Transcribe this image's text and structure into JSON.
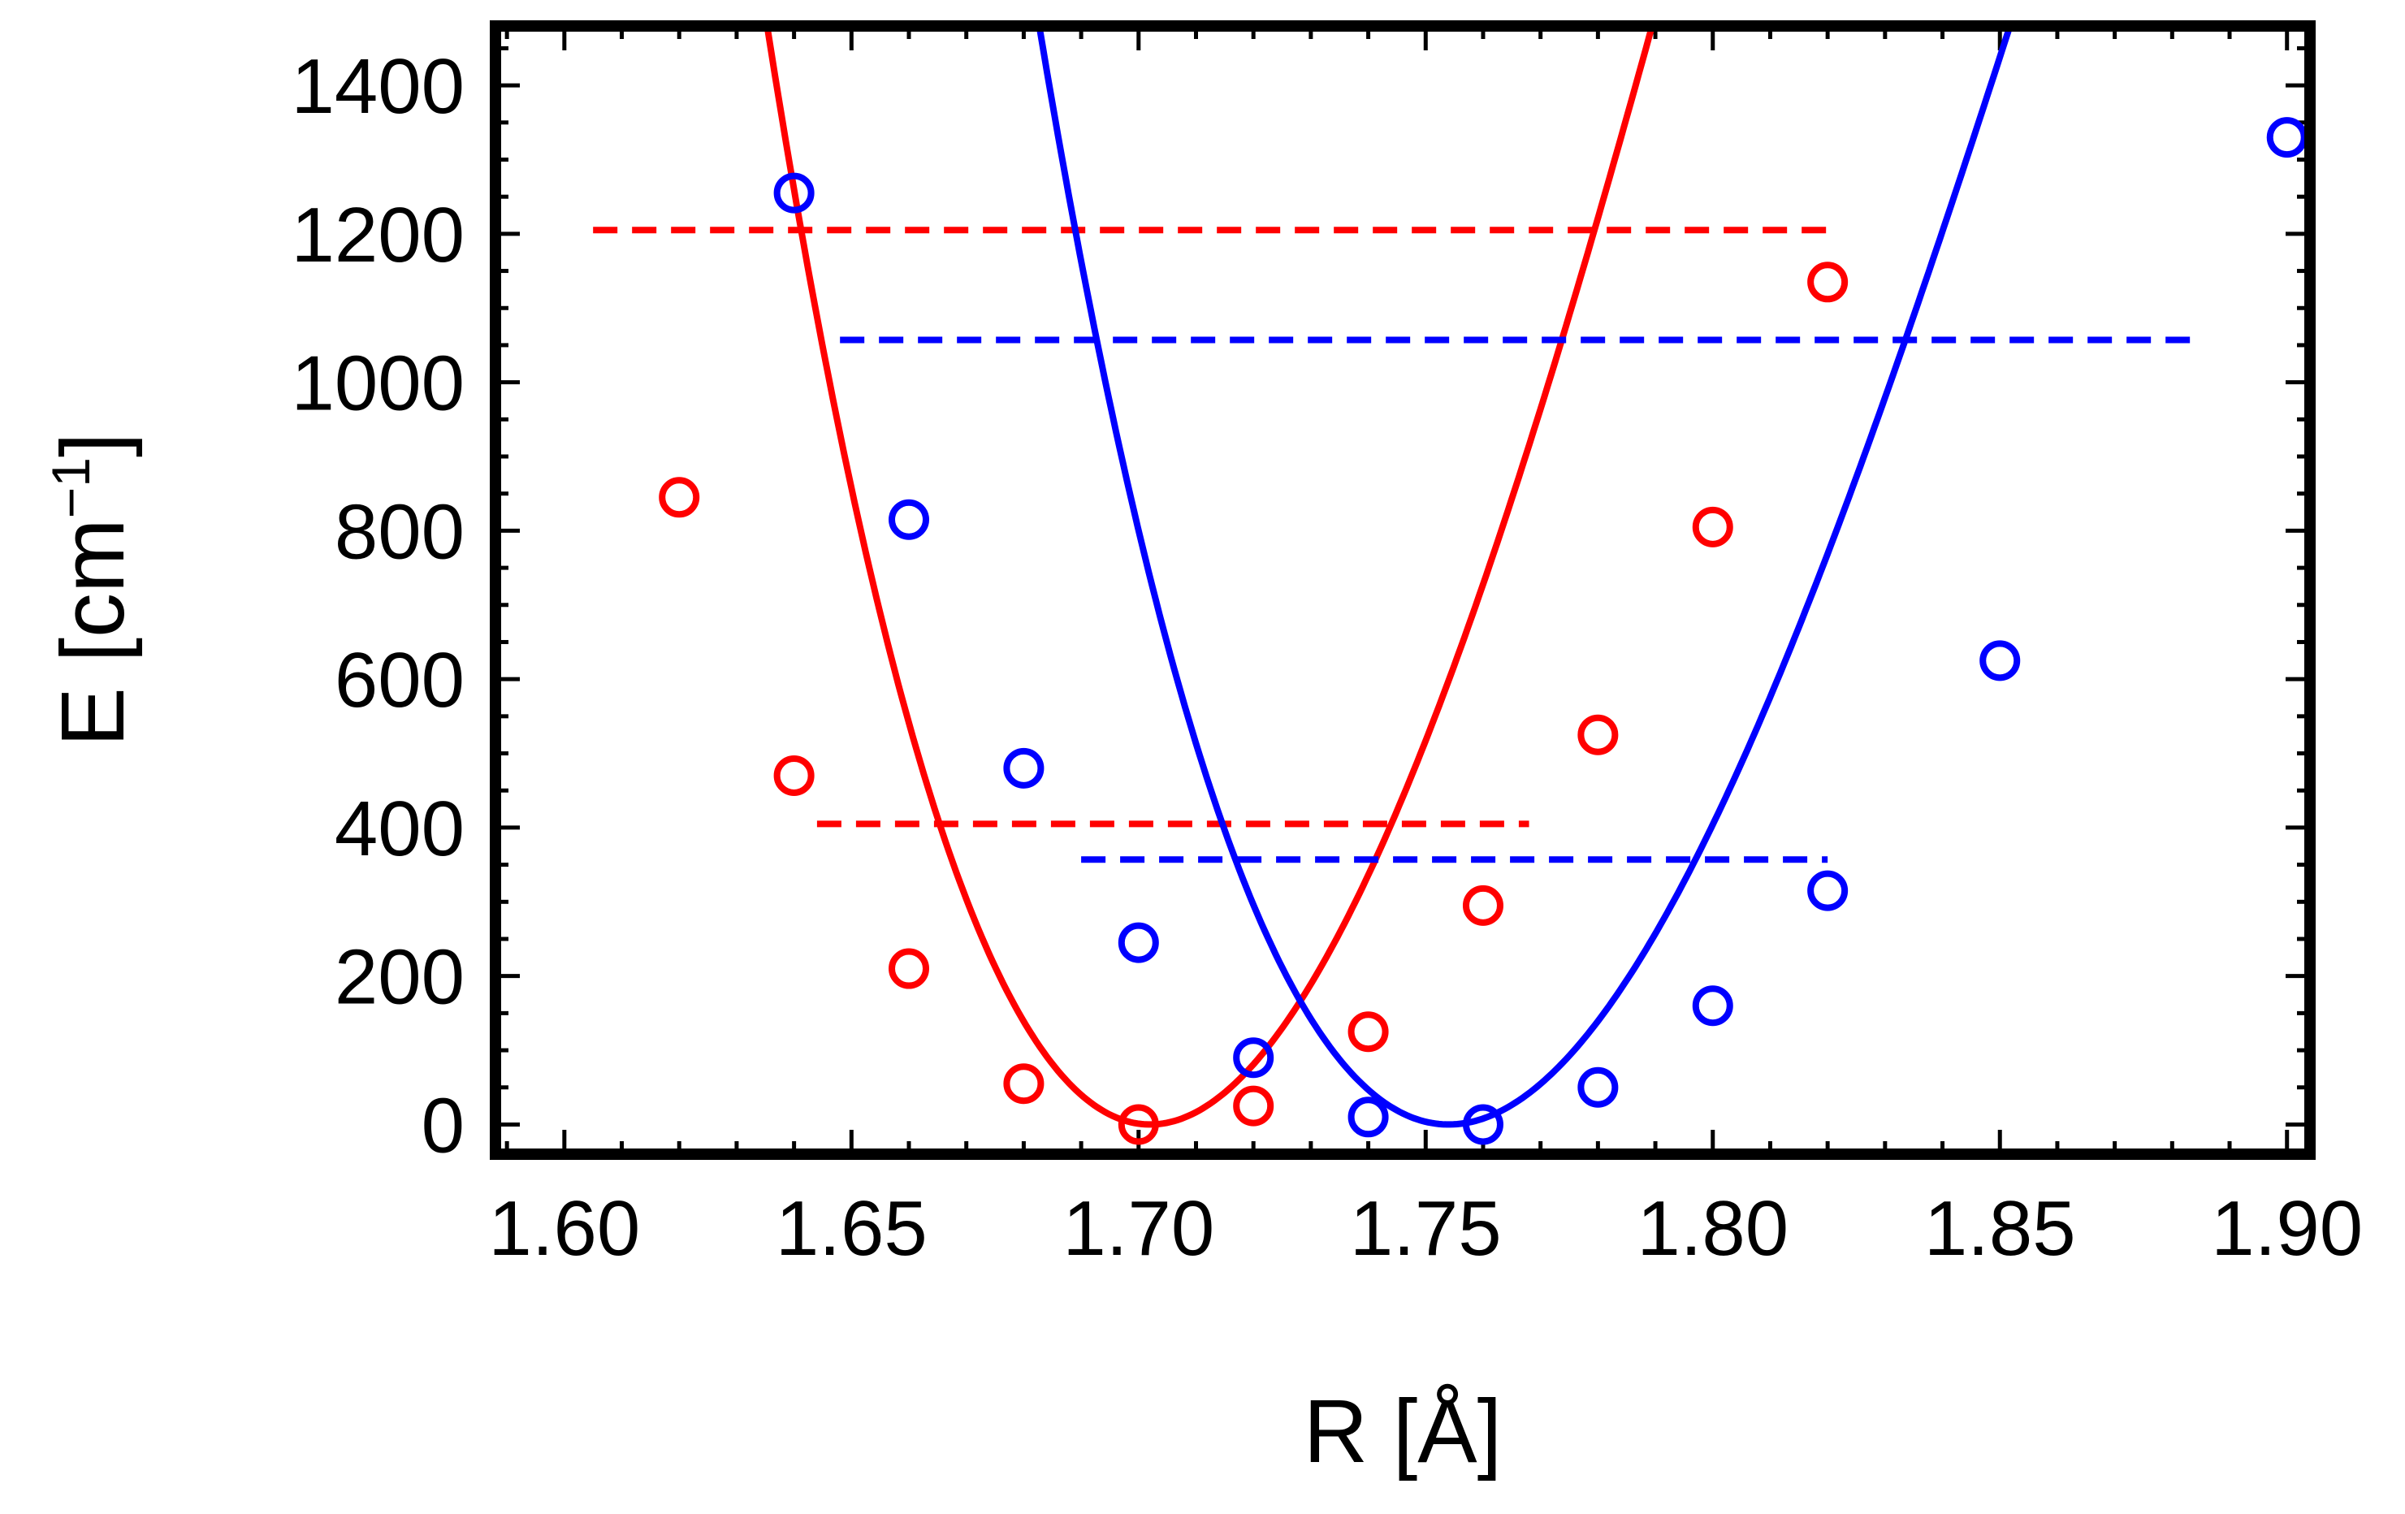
{
  "chart_data": {
    "type": "line",
    "xlabel": "R [Å]",
    "ylabel_main": "E [cm",
    "ylabel_sup": "−1",
    "ylabel_end": "]",
    "xlim": [
      1.588,
      1.904
    ],
    "ylim": [
      -40,
      1480
    ],
    "xticks": [
      1.6,
      1.65,
      1.7,
      1.75,
      1.8,
      1.85,
      1.9
    ],
    "xtick_labels": [
      "1.60",
      "1.65",
      "1.70",
      "1.75",
      "1.80",
      "1.85",
      "1.90"
    ],
    "yticks": [
      0,
      200,
      400,
      600,
      800,
      1000,
      1200,
      1400
    ],
    "ytick_labels": [
      "0",
      "200",
      "400",
      "600",
      "800",
      "1000",
      "1200",
      "1400"
    ],
    "grid": false,
    "series": [
      {
        "color": "#ff0000",
        "curve": {
          "r0": 1.702,
          "d": 36500,
          "a": 2.7,
          "c": -200
        },
        "points": {
          "x": [
            1.62,
            1.64,
            1.66,
            1.68,
            1.7,
            1.72,
            1.74,
            1.76,
            1.78,
            1.8,
            1.82
          ],
          "y": [
            845,
            470,
            210,
            55,
            0,
            25,
            125,
            295,
            525,
            805,
            1135
          ]
        },
        "levels": [
          {
            "y": 405,
            "x_start": 1.644,
            "x_end": 1.768
          },
          {
            "y": 1205,
            "x_start": 1.605,
            "x_end": 1.82
          }
        ]
      },
      {
        "color": "#0000ff",
        "curve": {
          "r0": 1.754,
          "d": 30000,
          "a": 2.75,
          "c": -200
        },
        "points": {
          "x": [
            1.64,
            1.66,
            1.68,
            1.7,
            1.72,
            1.74,
            1.76,
            1.78,
            1.8,
            1.82,
            1.85,
            1.9
          ],
          "y": [
            1255,
            815,
            480,
            245,
            90,
            10,
            0,
            50,
            160,
            315,
            625,
            1330
          ]
        },
        "levels": [
          {
            "y": 357,
            "x_start": 1.69,
            "x_end": 1.82
          },
          {
            "y": 1057,
            "x_start": 1.648,
            "x_end": 1.885
          }
        ]
      }
    ]
  }
}
